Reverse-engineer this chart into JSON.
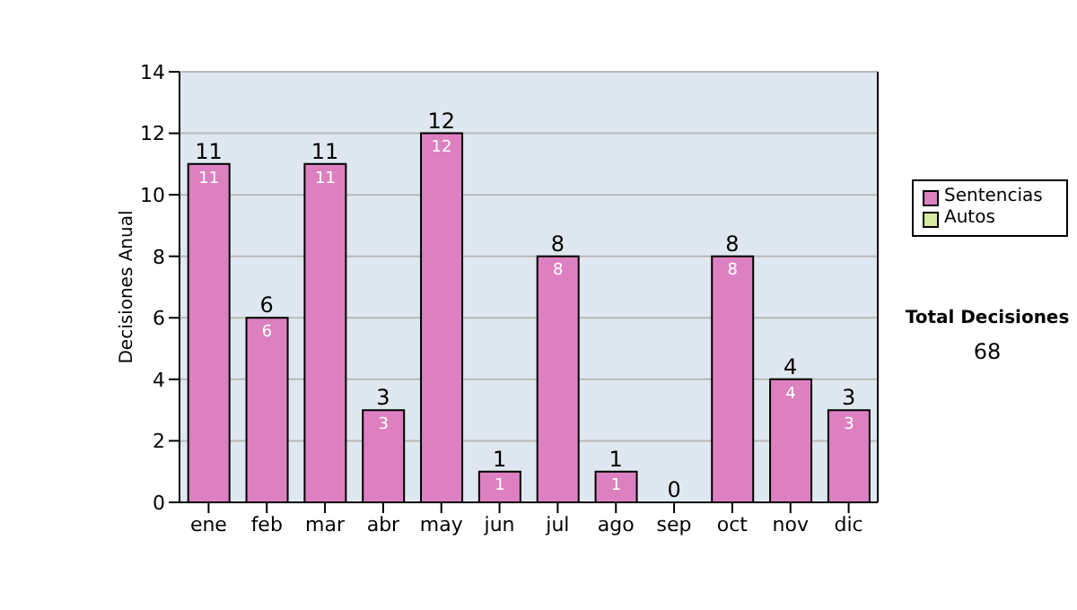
{
  "chart_data": {
    "type": "bar",
    "ylabel": "Decisiones Anual",
    "categories": [
      "ene",
      "feb",
      "mar",
      "abr",
      "may",
      "jun",
      "jul",
      "ago",
      "sep",
      "oct",
      "nov",
      "dic"
    ],
    "series": [
      {
        "name": "Sentencias",
        "color": "#dd80c0",
        "values": [
          11,
          6,
          11,
          3,
          12,
          1,
          8,
          1,
          0,
          8,
          4,
          3
        ],
        "value_labels": [
          "11",
          "6",
          "11",
          "3",
          "12",
          "1",
          "8",
          "1",
          null,
          "8",
          "4",
          "3"
        ]
      },
      {
        "name": "Autos",
        "color": "#d8eaa0",
        "values": [
          0,
          0,
          0,
          0,
          0,
          0,
          0,
          0,
          0,
          0,
          0,
          0
        ]
      }
    ],
    "stacked": true,
    "totals": [
      "11",
      "6",
      "11",
      "3",
      "12",
      "1",
      "8",
      "1",
      "0",
      "8",
      "4",
      "3"
    ],
    "ylim": [
      0,
      14
    ],
    "yticks": [
      0,
      2,
      4,
      6,
      8,
      10,
      12,
      14
    ],
    "grid": "y",
    "legend": "right",
    "annotations": [
      "Total Decisiones",
      "68"
    ]
  }
}
